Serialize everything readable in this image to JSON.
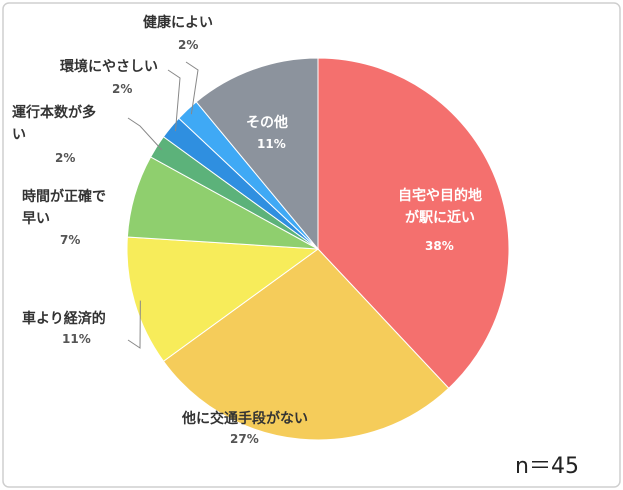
{
  "chart_data": {
    "type": "pie",
    "categories": [
      "自宅や目的地\nが駅に近い",
      "他に交通手段がない",
      "車より経済的",
      "時間が正確で\n早い",
      "運行本数が多\nい",
      "環境にやさしい",
      "健康によい",
      "その他"
    ],
    "values": [
      38,
      27,
      11,
      7,
      2,
      2,
      2,
      11
    ],
    "value_labels": [
      "38%",
      "27%",
      "11%",
      "7%",
      "2%",
      "2%",
      "2%",
      "11%"
    ],
    "colors": [
      "#f4706e",
      "#f5cc5a",
      "#f7ec5a",
      "#8fcf6e",
      "#5cb27a",
      "#2f8fe0",
      "#3fa9f5",
      "#8c939d"
    ],
    "annotation": "n＝45"
  }
}
